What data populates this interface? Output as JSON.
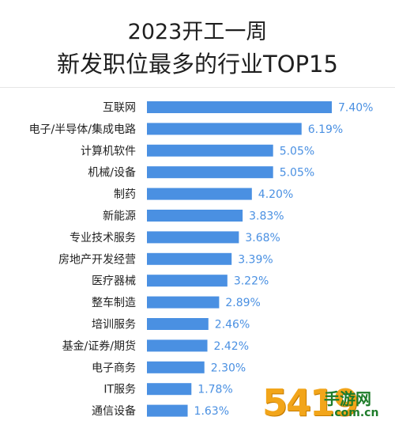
{
  "chart_data": {
    "type": "bar",
    "orientation": "horizontal",
    "title": "2023开工一周",
    "subtitle": "新发职位最多的行业TOP15",
    "xlabel": "",
    "ylabel": "",
    "xlim": [
      0,
      7.4
    ],
    "grid": false,
    "categories": [
      "互联网",
      "电子/半导体/集成电路",
      "计算机软件",
      "机械/设备",
      "制药",
      "新能源",
      "专业技术服务",
      "房地产开发经营",
      "医疗器械",
      "整车制造",
      "培训服务",
      "基金/证券/期货",
      "电子商务",
      "IT服务",
      "通信设备"
    ],
    "values": [
      7.4,
      6.19,
      5.05,
      5.05,
      4.2,
      3.83,
      3.68,
      3.39,
      3.22,
      2.89,
      2.46,
      2.42,
      2.3,
      1.78,
      1.63
    ],
    "labels": [
      "7.40%",
      "6.19%",
      "5.05%",
      "5.05%",
      "4.20%",
      "3.83%",
      "3.68%",
      "3.39%",
      "3.22%",
      "2.89%",
      "2.46%",
      "2.42%",
      "2.30%",
      "1.78%",
      "1.63%"
    ],
    "bar_color": "#4a90e2",
    "label_color": "#4a90e2"
  },
  "watermark": {
    "number": "5419",
    "text_cn": "手游网",
    "text_url": ".com.cn"
  }
}
